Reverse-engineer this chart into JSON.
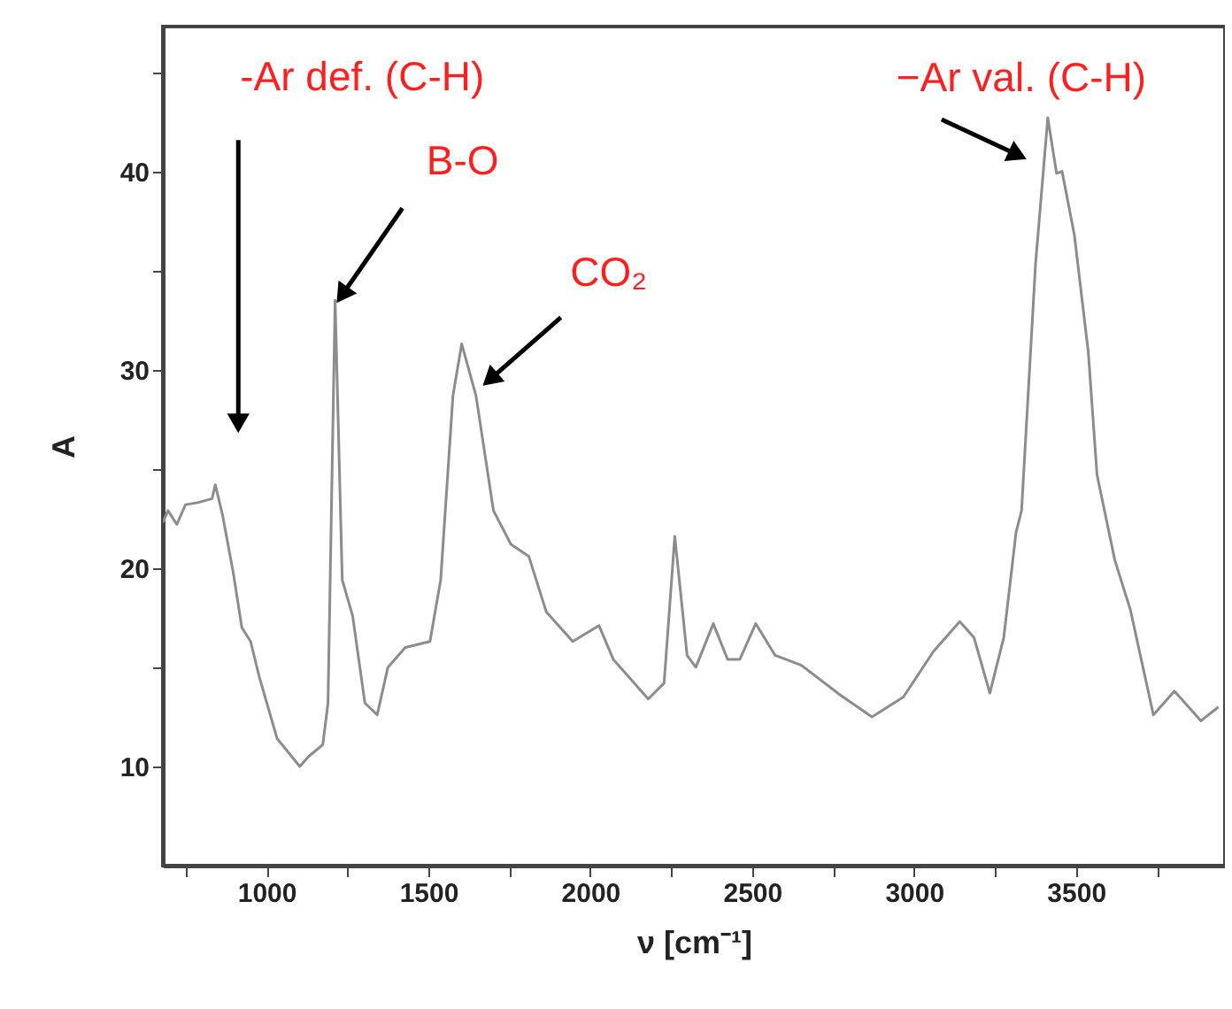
{
  "chart_data": {
    "type": "line",
    "xlabel": "ν [cm⁻¹]",
    "ylabel": "A",
    "color": "#8c8c8c",
    "grid": false,
    "xlim": [
      680,
      3960
    ],
    "ylim": [
      5,
      47.3
    ],
    "xticks": [
      {
        "value": 750,
        "label": null
      },
      1000,
      {
        "value": 1250,
        "label": null
      },
      1500,
      {
        "value": 1750,
        "label": null
      },
      2000,
      {
        "value": 2250,
        "label": null
      },
      2500,
      {
        "value": 2750,
        "label": null
      },
      3000,
      {
        "value": 3250,
        "label": null
      },
      3500,
      {
        "value": 3750,
        "label": null
      }
    ],
    "yticks": [
      10,
      {
        "value": 15,
        "label": null
      },
      20,
      {
        "value": 25,
        "label": null
      },
      30,
      {
        "value": 35,
        "label": null
      },
      40,
      {
        "value": 45,
        "label": null
      }
    ],
    "x": [
      680,
      696,
      723,
      750,
      788,
      832,
      842,
      864,
      897,
      924,
      951,
      978,
      1033,
      1103,
      1130,
      1174,
      1190,
      1212,
      1234,
      1266,
      1304,
      1342,
      1375,
      1429,
      1505,
      1538,
      1576,
      1603,
      1647,
      1674,
      1701,
      1755,
      1810,
      1864,
      1946,
      2027,
      2071,
      2179,
      2228,
      2261,
      2299,
      2326,
      2380,
      2424,
      2462,
      2511,
      2571,
      2652,
      2772,
      2870,
      2967,
      3060,
      3141,
      3185,
      3234,
      3277,
      3315,
      3332,
      3375,
      3413,
      3440,
      3457,
      3495,
      3538,
      3565,
      3620,
      3668,
      3739,
      3804,
      3886,
      3940
    ],
    "values": [
      22.3,
      22.9,
      22.2,
      23.2,
      23.3,
      23.5,
      24.2,
      22.7,
      19.8,
      17.0,
      16.3,
      14.5,
      11.4,
      10.0,
      10.5,
      11.1,
      13.2,
      33.5,
      19.4,
      17.6,
      13.2,
      12.6,
      15.0,
      16.0,
      16.3,
      19.4,
      28.7,
      31.3,
      28.7,
      25.8,
      22.9,
      21.2,
      20.6,
      17.8,
      16.3,
      17.1,
      15.4,
      13.4,
      14.2,
      21.6,
      15.6,
      15.0,
      17.2,
      15.4,
      15.4,
      17.2,
      15.6,
      15.1,
      13.6,
      12.5,
      13.5,
      15.8,
      17.3,
      16.5,
      13.7,
      16.5,
      21.8,
      22.9,
      35.3,
      42.7,
      39.9,
      40.0,
      36.8,
      30.9,
      24.7,
      20.4,
      17.9,
      12.6,
      13.8,
      12.3,
      13.0
    ],
    "annotations": [
      {
        "text": "-Ar def. (C-H)",
        "x": 913,
        "y": 27.3
      },
      {
        "text": "B-O",
        "x": 1212,
        "y": 33.5
      },
      {
        "text": "CO₂",
        "x": 1603,
        "y": 31.3
      },
      {
        "text": "−Ar val. (C-H)",
        "x": 3413,
        "y": 42.7
      }
    ]
  }
}
